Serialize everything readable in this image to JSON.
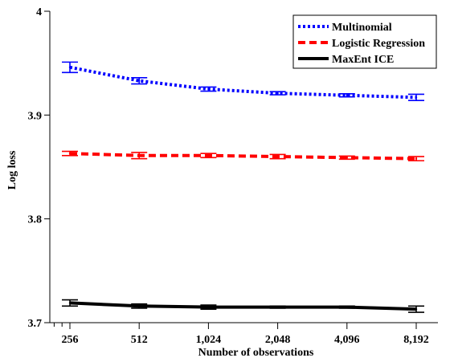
{
  "chart_data": {
    "type": "line",
    "xlabel": "Number of observations",
    "ylabel": "Log loss",
    "categories": [
      "256",
      "512",
      "1,024",
      "2,048",
      "4,096",
      "8,192"
    ],
    "x": [
      256,
      512,
      1024,
      2048,
      4096,
      8192
    ],
    "x_scale": "log2",
    "ylim": [
      3.7,
      4.0
    ],
    "yticks": [
      3.7,
      3.8,
      3.9,
      4.0
    ],
    "ytick_labels": [
      "3.7",
      "3.8",
      "3.9",
      "4"
    ],
    "grid": false,
    "legend_position": "top-right",
    "series": [
      {
        "name": "Multinomial",
        "color": "#0000ff",
        "style": "dotted",
        "values": [
          3.946,
          3.933,
          3.925,
          3.921,
          3.919,
          3.917
        ],
        "error": [
          0.005,
          0.003,
          0.002,
          0.0015,
          0.0015,
          0.003
        ]
      },
      {
        "name": "Logistic Regression",
        "color": "#ff0000",
        "style": "dashed",
        "values": [
          3.863,
          3.861,
          3.861,
          3.86,
          3.859,
          3.858
        ],
        "error": [
          0.002,
          0.003,
          0.002,
          0.002,
          0.0015,
          0.002
        ]
      },
      {
        "name": "MaxEnt ICE",
        "color": "#000000",
        "style": "solid",
        "values": [
          3.719,
          3.716,
          3.715,
          3.715,
          3.715,
          3.713
        ],
        "error": [
          0.003,
          0.002,
          0.002,
          0.001,
          0.001,
          0.003
        ]
      }
    ]
  }
}
